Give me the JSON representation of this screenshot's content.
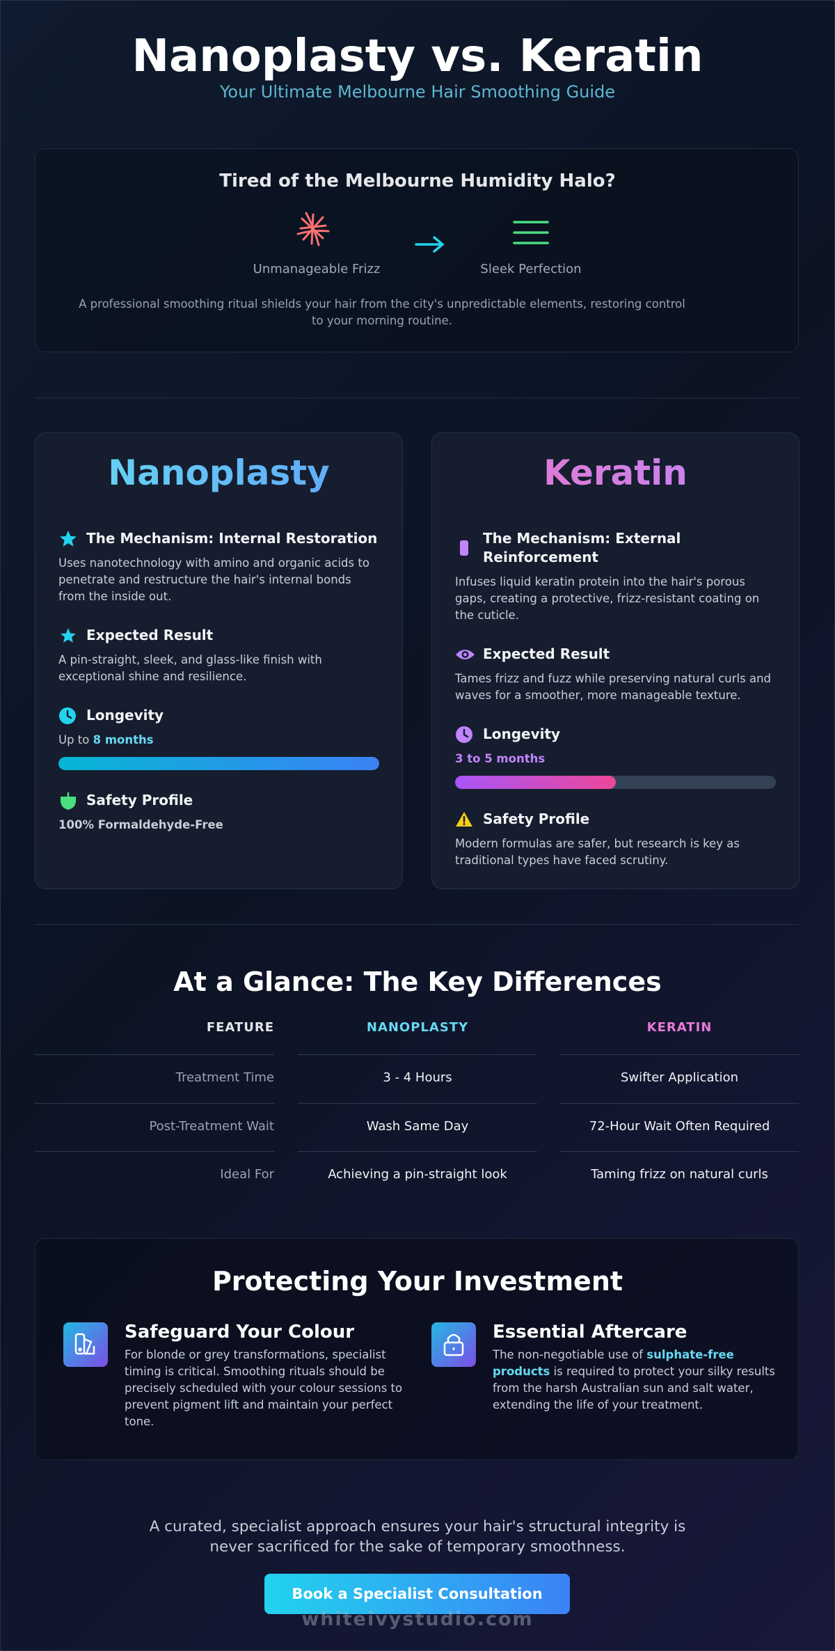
{
  "header": {
    "title": "Nanoplasty vs. Keratin",
    "subtitle": "Your Ultimate Melbourne Hair Smoothing Guide"
  },
  "intro": {
    "heading": "Tired of the Melbourne Humidity Halo?",
    "before": "Unmanageable Frizz",
    "after": "Sleek Perfection",
    "text": "A professional smoothing ritual shields your hair from the city's unpredictable elements, restoring control to your morning routine."
  },
  "nanoplasty": {
    "title": "Nanoplasty",
    "items": [
      {
        "heading": "The Mechanism: Internal Restoration",
        "text": "Uses nanotechnology with amino and organic acids to penetrate and restructure the hair's internal bonds from the inside out."
      },
      {
        "heading": "Expected Result",
        "text": "A pin-straight, sleek, and glass-like finish with exceptional shine and resilience."
      },
      {
        "heading": "Longevity",
        "prefix": "Up to ",
        "highlight": "8 months"
      },
      {
        "heading": "Safety Profile",
        "text": "100% Formaldehyde-Free"
      }
    ]
  },
  "keratin": {
    "title": "Keratin",
    "items": [
      {
        "heading": "The Mechanism: External Reinforcement",
        "text": "Infuses liquid keratin protein into the hair's porous gaps, creating a protective, frizz-resistant coating on the cuticle."
      },
      {
        "heading": "Expected Result",
        "text": "Tames frizz and fuzz while preserving natural curls and waves for a smoother, more manageable texture."
      },
      {
        "heading": "Longevity",
        "highlight": "3 to 5 months"
      },
      {
        "heading": "Safety Profile",
        "text": "Modern formulas are safer, but research is key as traditional types have faced scrutiny."
      }
    ]
  },
  "table": {
    "title": "At a Glance: The Key Differences",
    "columns": [
      "FEATURE",
      "NANOPLASTY",
      "KERATIN"
    ],
    "rows": [
      [
        "Treatment Time",
        "3 - 4 Hours",
        "Swifter Application"
      ],
      [
        "Post-Treatment Wait",
        "Wash Same Day",
        "72-Hour Wait Often Required"
      ],
      [
        "Ideal For",
        "Achieving a pin-straight look",
        "Taming frizz on natural curls"
      ]
    ]
  },
  "protect": {
    "title": "Protecting Your Investment",
    "items": [
      {
        "heading": "Safeguard Your Colour",
        "text": "For blonde or grey transformations, specialist timing is critical. Smoothing rituals should be precisely scheduled with your colour sessions to prevent pigment lift and maintain your perfect tone."
      },
      {
        "heading": "Essential Aftercare",
        "prefix": "The non-negotiable use of ",
        "highlight": "sulphate-free products",
        "suffix": " is required to protect your silky results from the harsh Australian sun and salt water, extending the life of your treatment."
      }
    ]
  },
  "footer": {
    "text": "A curated, specialist approach ensures your hair's structural integrity is never sacrificed for the sake of temporary smoothness.",
    "button": "Book a Specialist Consultation",
    "watermark": "whiteivystudio.com"
  }
}
